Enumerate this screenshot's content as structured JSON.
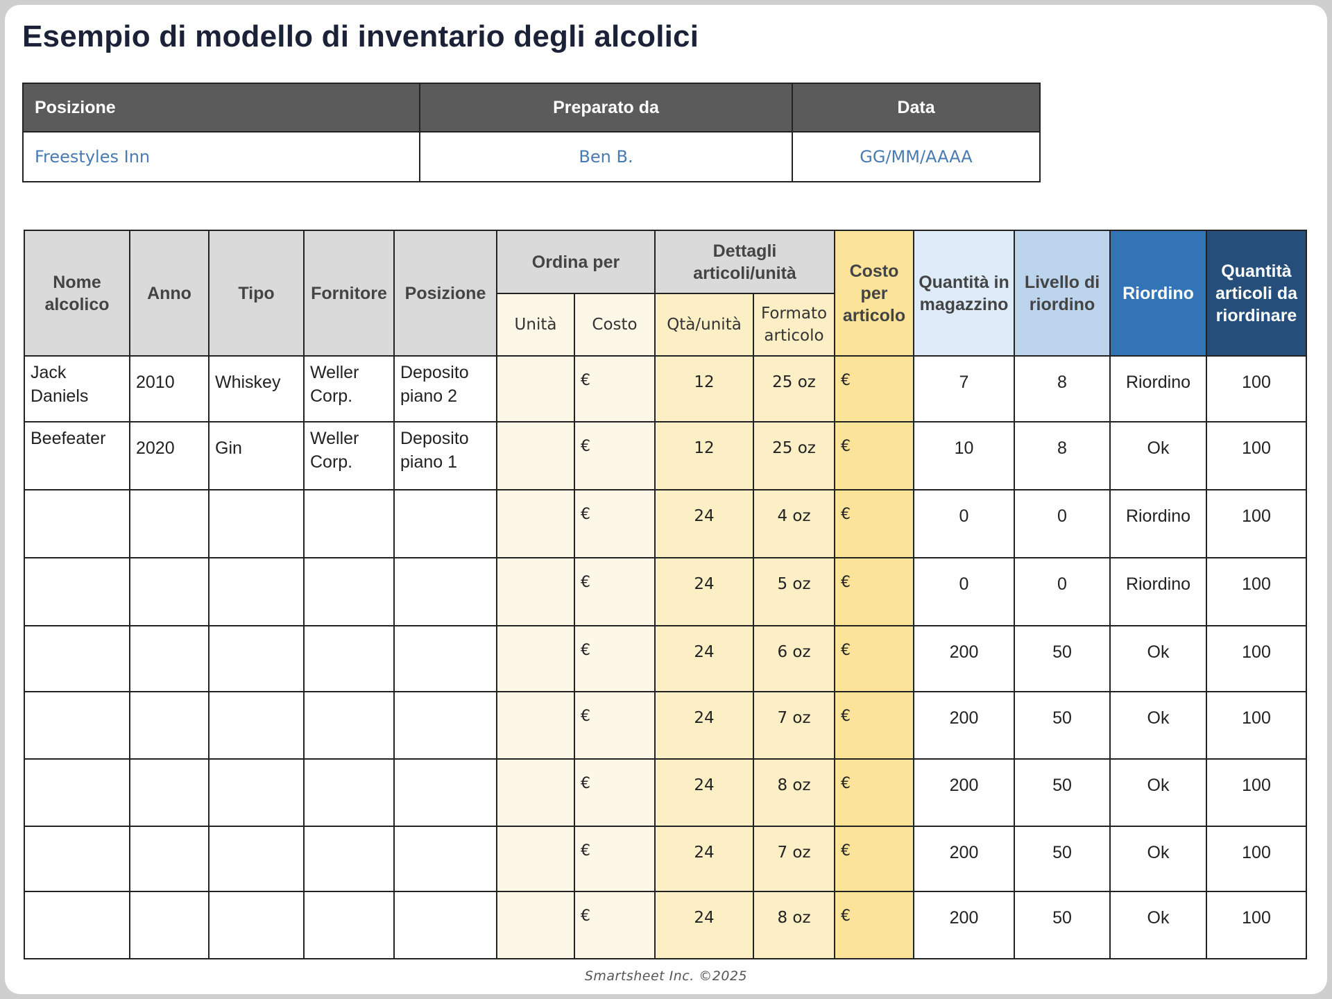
{
  "title": "Esempio di modello di inventario degli alcolici",
  "info": {
    "headers": [
      "Posizione",
      "Preparato da",
      "Data"
    ],
    "values": [
      "Freestyles Inn",
      "Ben B.",
      "GG/MM/AAAA"
    ]
  },
  "table": {
    "headers": {
      "nome": "Nome alcolico",
      "anno": "Anno",
      "tipo": "Tipo",
      "fornitore": "Fornitore",
      "posizione": "Posizione",
      "ordina_per": "Ordina per",
      "unita": "Unità",
      "costo": "Costo",
      "dettagli": "Dettagli articoli/unità",
      "qta_unita": "Qtà/unità",
      "formato": "Formato articolo",
      "costo_articolo": "Costo per articolo",
      "quantita_magazzino": "Quantità in magazzino",
      "livello_riordino": "Livello di riordino",
      "riordino": "Riordino",
      "quantita_riordinare": "Quantità articoli da riordinare"
    },
    "rows": [
      {
        "nome": "Jack Daniels",
        "anno": "2010",
        "tipo": "Whiskey",
        "fornitore": "Weller Corp.",
        "posizione": "Deposito piano 2",
        "unita": "",
        "costo": "€",
        "qta": "12",
        "formato": "25 oz",
        "costo_articolo": "€",
        "magazzino": "7",
        "livello": "8",
        "riordino": "Riordino",
        "da_riordinare": "100"
      },
      {
        "nome": "Beefeater",
        "anno": "2020",
        "tipo": "Gin",
        "fornitore": "Weller Corp.",
        "posizione": "Deposito piano 1",
        "unita": "",
        "costo": "€",
        "qta": "12",
        "formato": "25 oz",
        "costo_articolo": "€",
        "magazzino": "10",
        "livello": "8",
        "riordino": "Ok",
        "da_riordinare": "100"
      },
      {
        "nome": "",
        "anno": "",
        "tipo": "",
        "fornitore": "",
        "posizione": "",
        "unita": "",
        "costo": "€",
        "qta": "24",
        "formato": "4 oz",
        "costo_articolo": "€",
        "magazzino": "0",
        "livello": "0",
        "riordino": "Riordino",
        "da_riordinare": "100"
      },
      {
        "nome": "",
        "anno": "",
        "tipo": "",
        "fornitore": "",
        "posizione": "",
        "unita": "",
        "costo": "€",
        "qta": "24",
        "formato": "5 oz",
        "costo_articolo": "€",
        "magazzino": "0",
        "livello": "0",
        "riordino": "Riordino",
        "da_riordinare": "100"
      },
      {
        "nome": "",
        "anno": "",
        "tipo": "",
        "fornitore": "",
        "posizione": "",
        "unita": "",
        "costo": "€",
        "qta": "24",
        "formato": "6 oz",
        "costo_articolo": "€",
        "magazzino": "200",
        "livello": "50",
        "riordino": "Ok",
        "da_riordinare": "100"
      },
      {
        "nome": "",
        "anno": "",
        "tipo": "",
        "fornitore": "",
        "posizione": "",
        "unita": "",
        "costo": "€",
        "qta": "24",
        "formato": "7 oz",
        "costo_articolo": "€",
        "magazzino": "200",
        "livello": "50",
        "riordino": "Ok",
        "da_riordinare": "100"
      },
      {
        "nome": "",
        "anno": "",
        "tipo": "",
        "fornitore": "",
        "posizione": "",
        "unita": "",
        "costo": "€",
        "qta": "24",
        "formato": "8 oz",
        "costo_articolo": "€",
        "magazzino": "200",
        "livello": "50",
        "riordino": "Ok",
        "da_riordinare": "100"
      },
      {
        "nome": "",
        "anno": "",
        "tipo": "",
        "fornitore": "",
        "posizione": "",
        "unita": "",
        "costo": "€",
        "qta": "24",
        "formato": "7 oz",
        "costo_articolo": "€",
        "magazzino": "200",
        "livello": "50",
        "riordino": "Ok",
        "da_riordinare": "100"
      },
      {
        "nome": "",
        "anno": "",
        "tipo": "",
        "fornitore": "",
        "posizione": "",
        "unita": "",
        "costo": "€",
        "qta": "24",
        "formato": "8 oz",
        "costo_articolo": "€",
        "magazzino": "200",
        "livello": "50",
        "riordino": "Ok",
        "da_riordinare": "100"
      }
    ]
  },
  "colors": {
    "title": "#1b2238",
    "info_header_bg": "#5b5b5b",
    "info_value_text": "#4a7bb0",
    "header_grey": "#dadadb",
    "yellow_light": "#fdf7e7",
    "yellow_mid": "#fcefc6",
    "yellow_strong": "#fbe39a",
    "blue_light": "#deebf8",
    "blue_mid": "#bcd4ec",
    "blue_strong": "#3274b6",
    "blue_dark": "#254e7a"
  },
  "footer": "Smartsheet Inc. ©2025"
}
